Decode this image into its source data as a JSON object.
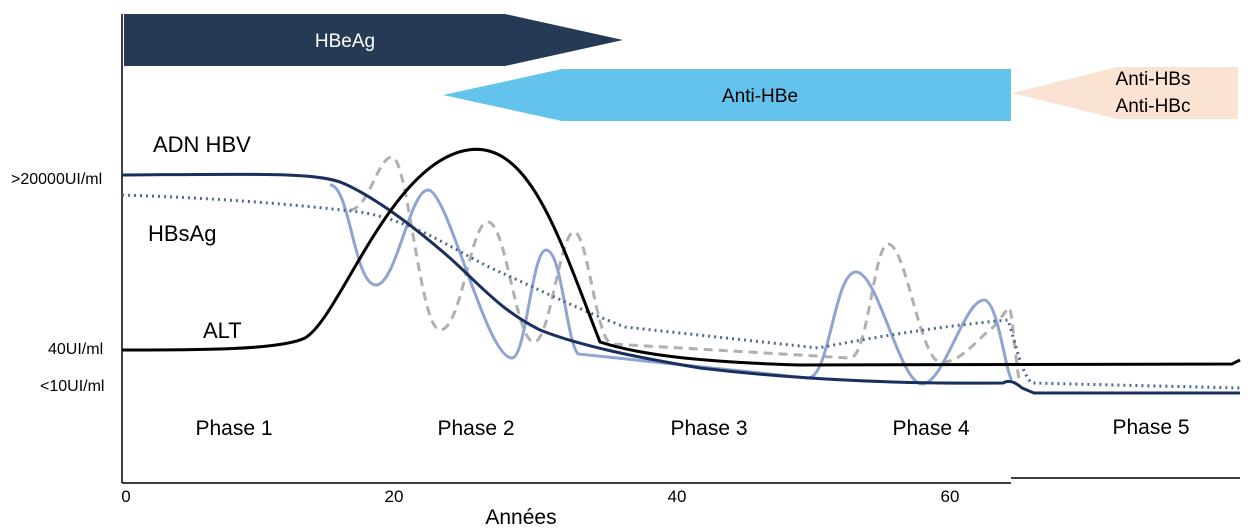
{
  "markers": {
    "hbeag": "HBeAg",
    "anti_hbe": "Anti-HBe",
    "anti_hbs": "Anti-HBs",
    "anti_hbc": "Anti-HBc"
  },
  "curves": {
    "adn_hbv": "ADN HBV",
    "hbsag": "HBsAg",
    "alt": "ALT"
  },
  "levels": {
    "high": ">20000UI/ml",
    "mid": "40UI/ml",
    "low": "<10UI/ml"
  },
  "phases": [
    "Phase 1",
    "Phase 2",
    "Phase 3",
    "Phase 4",
    "Phase 5"
  ],
  "axis": {
    "x_ticks": [
      "0",
      "20",
      "40",
      "60"
    ],
    "x_title": "Années"
  },
  "colors": {
    "hbeag_band": "#263a55",
    "anti_hbe_band": "#64c3ec",
    "anti_hbs_band": "#fbe3d3",
    "dna_curve": "#1a2f5e",
    "alt_curve": "#000000",
    "hbsag_curve": "#4f6a92",
    "light_wave": "#8ea4d2",
    "gray_wave": "#b0b0b0"
  }
}
